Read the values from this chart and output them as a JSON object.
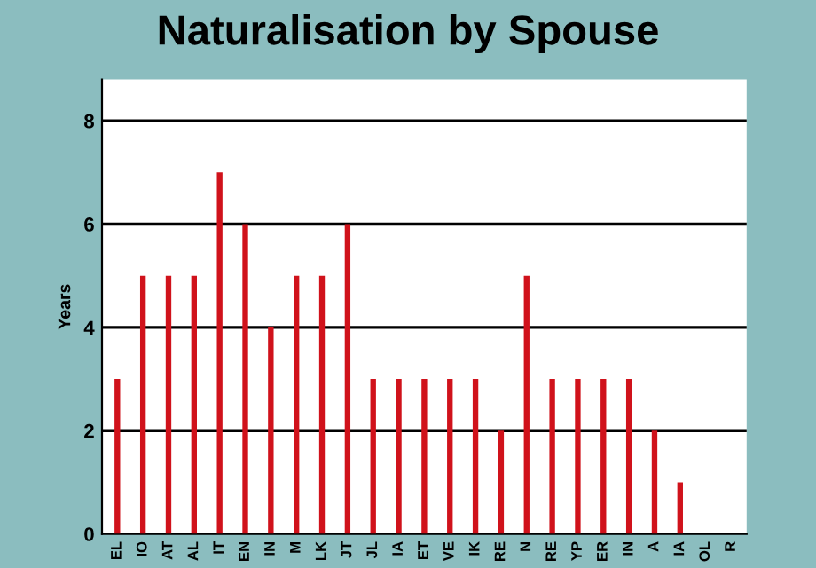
{
  "chart_data": {
    "type": "bar",
    "title": "Naturalisation by Spouse",
    "ylabel": "Years",
    "categories": [
      "EL",
      "IO",
      "AT",
      "AL",
      "IT",
      "EN",
      "IN",
      "M",
      "LK",
      "JT",
      "JL",
      "IA",
      "ET",
      "VE",
      "IK",
      "RE",
      "N",
      "RE",
      "YP",
      "ER",
      "IN",
      "A",
      "IA",
      "OL",
      "R"
    ],
    "values": [
      3,
      5,
      5,
      5,
      7,
      6,
      4,
      5,
      5,
      6,
      3,
      3,
      3,
      3,
      3,
      2,
      5,
      3,
      3,
      3,
      3,
      2,
      1,
      0,
      0
    ],
    "color": "#d0121b",
    "ylim": [
      0,
      8.8
    ],
    "yticks": [
      0,
      2,
      4,
      6,
      8
    ],
    "grid": "y"
  }
}
